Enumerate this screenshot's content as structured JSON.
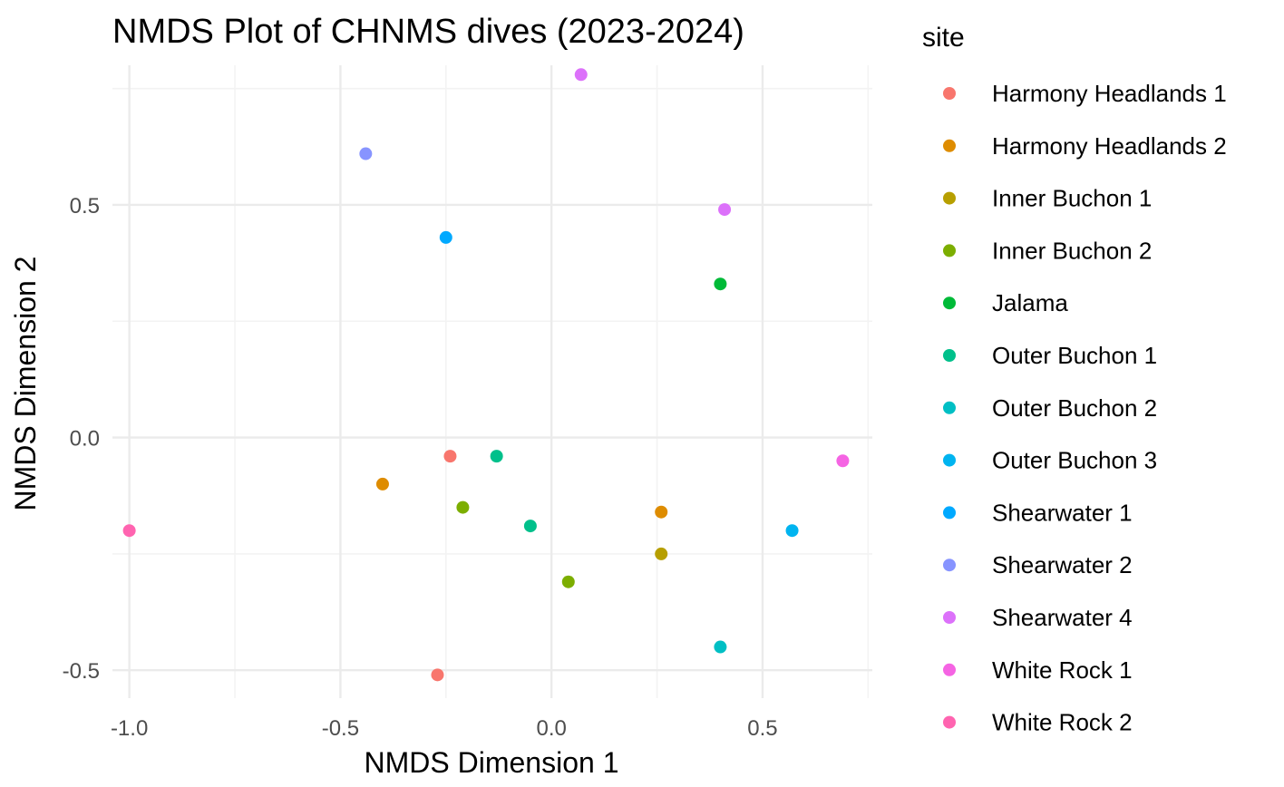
{
  "chart_data": {
    "type": "scatter",
    "title": "NMDS Plot of CHNMS dives (2023-2024)",
    "xlabel": "NMDS Dimension 1",
    "ylabel": "NMDS Dimension 2",
    "xlim": [
      -1.04,
      0.76
    ],
    "ylim": [
      -0.56,
      0.8
    ],
    "x_ticks": [
      "-1.0",
      "-0.5",
      "0.0",
      "0.5"
    ],
    "y_ticks": [
      "-0.5",
      "0.0",
      "0.5"
    ],
    "grid": true,
    "legend": {
      "title": "site",
      "position": "right"
    },
    "series": [
      {
        "name": "Harmony Headlands 1",
        "color": "#F8766D",
        "points": [
          [
            -0.24,
            -0.04
          ],
          [
            -0.27,
            -0.51
          ]
        ]
      },
      {
        "name": "Harmony Headlands 2",
        "color": "#DE8C00",
        "points": [
          [
            -0.4,
            -0.1
          ],
          [
            0.26,
            -0.16
          ]
        ]
      },
      {
        "name": "Inner Buchon 1",
        "color": "#B79F00",
        "points": [
          [
            0.26,
            -0.25
          ]
        ]
      },
      {
        "name": "Inner Buchon 2",
        "color": "#7CAE00",
        "points": [
          [
            -0.21,
            -0.15
          ],
          [
            0.04,
            -0.31
          ]
        ]
      },
      {
        "name": "Jalama",
        "color": "#00BA38",
        "points": [
          [
            0.4,
            0.33
          ]
        ]
      },
      {
        "name": "Outer Buchon 1",
        "color": "#00C08B",
        "points": [
          [
            -0.13,
            -0.04
          ],
          [
            -0.05,
            -0.19
          ]
        ]
      },
      {
        "name": "Outer Buchon 2",
        "color": "#00BFC4",
        "points": [
          [
            0.4,
            -0.45
          ]
        ]
      },
      {
        "name": "Outer Buchon 3",
        "color": "#00B4F0",
        "points": [
          [
            0.57,
            -0.2
          ]
        ]
      },
      {
        "name": "Shearwater 1",
        "color": "#00A9FF",
        "points": [
          [
            -0.25,
            0.43
          ]
        ]
      },
      {
        "name": "Shearwater 2",
        "color": "#8794FF",
        "points": [
          [
            -0.44,
            0.61
          ]
        ]
      },
      {
        "name": "Shearwater 4",
        "color": "#DC71FA",
        "points": [
          [
            0.07,
            0.78
          ],
          [
            0.41,
            0.49
          ]
        ]
      },
      {
        "name": "White Rock 1",
        "color": "#F564E3",
        "points": [
          [
            0.69,
            -0.05
          ]
        ]
      },
      {
        "name": "White Rock 2",
        "color": "#FF64B0",
        "points": [
          [
            -1.0,
            -0.2
          ]
        ]
      }
    ]
  }
}
